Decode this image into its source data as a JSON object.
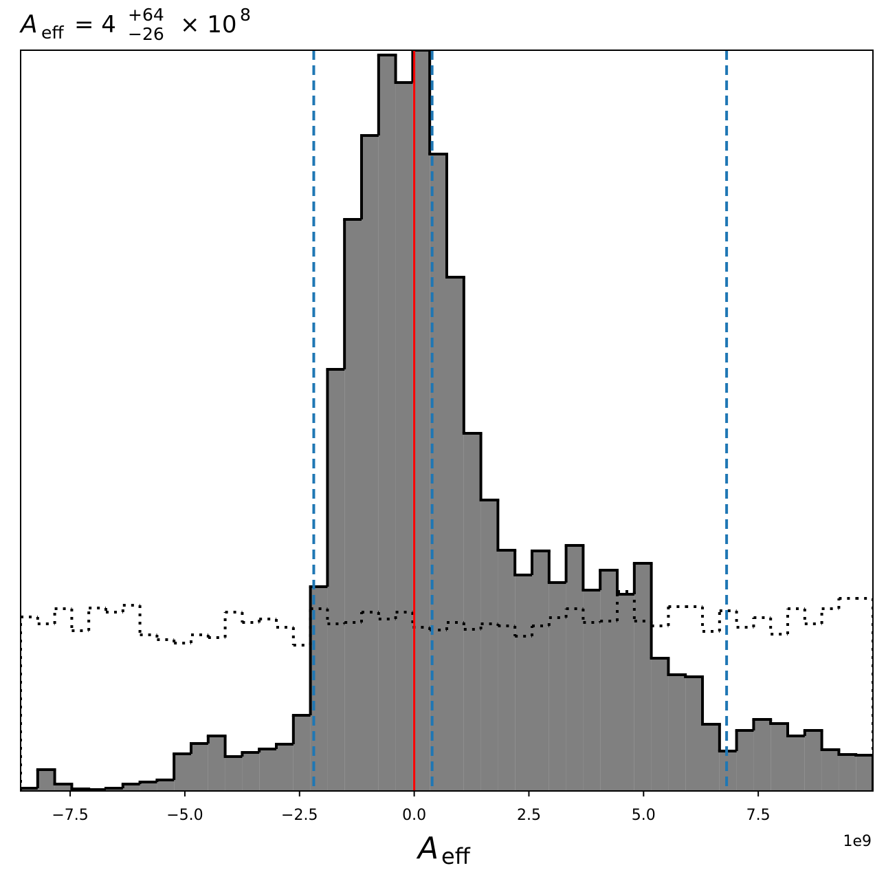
{
  "chart_data": {
    "type": "histogram",
    "title": {
      "symbol": "A",
      "subscript": "eff",
      "equals": "= 4",
      "upper": "+64",
      "lower": "−26",
      "times": "× 10",
      "exponent": "8"
    },
    "xlabel": {
      "symbol": "A",
      "subscript": "eff"
    },
    "x_offset_label": "1e9",
    "bins": [
      -8.58,
      -8.208,
      -7.837,
      -7.465,
      -7.094,
      -6.722,
      -6.35,
      -5.979,
      -5.607,
      -5.236,
      -4.864,
      -4.492,
      -4.121,
      -3.749,
      -3.378,
      -3.006,
      -2.634,
      -2.263,
      -1.891,
      -1.52,
      -1.148,
      -0.776,
      -0.405,
      -0.033,
      0.338,
      0.71,
      1.082,
      1.453,
      1.825,
      2.196,
      2.568,
      2.94,
      3.311,
      3.683,
      4.054,
      4.426,
      4.798,
      5.169,
      5.541,
      5.912,
      6.284,
      6.656,
      7.027,
      7.399,
      7.77,
      8.142,
      8.514,
      8.885,
      9.257,
      9.628,
      10.0
    ],
    "series": [
      {
        "name": "posterior",
        "color": "#808080",
        "edge_color": "#000000",
        "style": "filled",
        "values": [
          4,
          31,
          10,
          3,
          2,
          4,
          10,
          13,
          16,
          54,
          69,
          80,
          50,
          56,
          61,
          68,
          110,
          297,
          613,
          831,
          953,
          1070,
          1030,
          1077,
          926,
          747,
          520,
          423,
          350,
          314,
          349,
          303,
          357,
          292,
          321,
          286,
          331,
          193,
          169,
          166,
          97,
          58,
          88,
          104,
          98,
          80,
          88,
          60,
          53,
          52
        ]
      },
      {
        "name": "prior",
        "color": "#000000",
        "style": "dotted",
        "values": [
          253,
          243,
          265,
          233,
          266,
          260,
          270,
          227,
          220,
          215,
          227,
          223,
          260,
          245,
          250,
          238,
          212,
          265,
          243,
          245,
          260,
          250,
          260,
          238,
          234,
          245,
          235,
          243,
          240,
          225,
          240,
          252,
          265,
          245,
          247,
          290,
          247,
          240,
          268,
          268,
          232,
          262,
          238,
          252,
          228,
          265,
          243,
          265,
          280,
          280
        ]
      }
    ],
    "vlines": [
      {
        "x": -2.19,
        "color": "#1f77b4",
        "style": "dashed"
      },
      {
        "x": 0.39,
        "color": "#1f77b4",
        "style": "dashed"
      },
      {
        "x": 6.81,
        "color": "#1f77b4",
        "style": "dashed"
      },
      {
        "x": 0,
        "color": "#ff0000",
        "style": "solid"
      }
    ],
    "xlim": [
      -8.58,
      10.0
    ],
    "ylim": [
      0,
      1077
    ],
    "xticks": [
      {
        "value": -7.5,
        "label": "−7.5"
      },
      {
        "value": -5.0,
        "label": "−5.0"
      },
      {
        "value": -2.5,
        "label": "−2.5"
      },
      {
        "value": 0.0,
        "label": "0.0"
      },
      2.5,
      {
        "value": 5.0,
        "label": "5.0"
      },
      7.5
    ]
  }
}
